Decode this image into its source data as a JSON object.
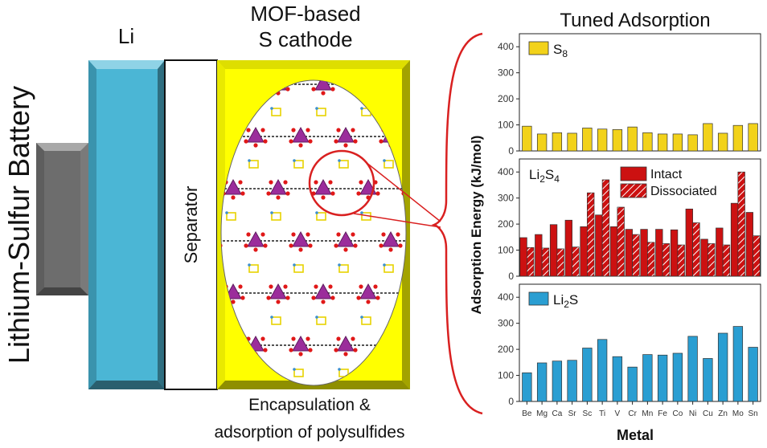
{
  "diagram": {
    "battery_label": "Lithium-Sulfur Battery",
    "anode_label": "Li",
    "cathode_label_line1": "MOF-based",
    "cathode_label_line2": "S cathode",
    "separator_label": "Separator",
    "caption_line1": "Encapsulation &",
    "caption_line2": "adsorption of polysulfides",
    "colors": {
      "anode": "#4bb6d5",
      "cathode": "#ffff00",
      "cathode_border": "#b3b300",
      "callout": "#d92020",
      "mof_node": "#9b2d9b",
      "sulfur": "#e8d200"
    }
  },
  "chart_data": {
    "type": "bar",
    "title": "Tuned Adsorption",
    "ylabel": "Adsorption Energy (kJ/mol)",
    "xlabel": "Metal",
    "categories": [
      "Be",
      "Mg",
      "Ca",
      "Sr",
      "Sc",
      "Ti",
      "V",
      "Cr",
      "Mn",
      "Fe",
      "Co",
      "Ni",
      "Cu",
      "Zn",
      "Mo",
      "Sn"
    ],
    "ylim": [
      0,
      450
    ],
    "yticks": [
      0,
      100,
      200,
      300,
      400
    ],
    "panels": [
      {
        "label_main": "S",
        "label_sub": "8",
        "series": [
          {
            "name": "S8",
            "color": "#f2d21a",
            "values": [
              95,
              65,
              70,
              68,
              88,
              84,
              82,
              92,
              70,
              65,
              65,
              62,
              105,
              68,
              98,
              105
            ]
          }
        ]
      },
      {
        "label_main": "Li",
        "label_sub": "2",
        "label_main2": "S",
        "label_sub2": "4",
        "series": [
          {
            "name": "Intact",
            "color": "#cc1111",
            "values": [
              148,
              160,
              198,
              215,
              190,
              235,
              190,
              180,
              180,
              180,
              178,
              258,
              142,
              185,
              280,
              245
            ]
          },
          {
            "name": "Dissociated",
            "color": "#cc1111",
            "hatched": true,
            "values": [
              110,
              108,
              105,
              112,
              320,
              370,
              265,
              160,
              130,
              125,
              120,
              205,
              125,
              120,
              400,
              155
            ]
          }
        ],
        "legend": [
          "Intact",
          "Dissociated"
        ]
      },
      {
        "label_main": "Li",
        "label_sub": "2",
        "label_main2": "S",
        "series": [
          {
            "name": "Li2S",
            "color": "#2a9ed2",
            "values": [
              110,
              148,
              155,
              158,
              205,
              238,
              172,
              132,
              180,
              178,
              185,
              250,
              165,
              262,
              288,
              208
            ]
          }
        ]
      }
    ]
  }
}
